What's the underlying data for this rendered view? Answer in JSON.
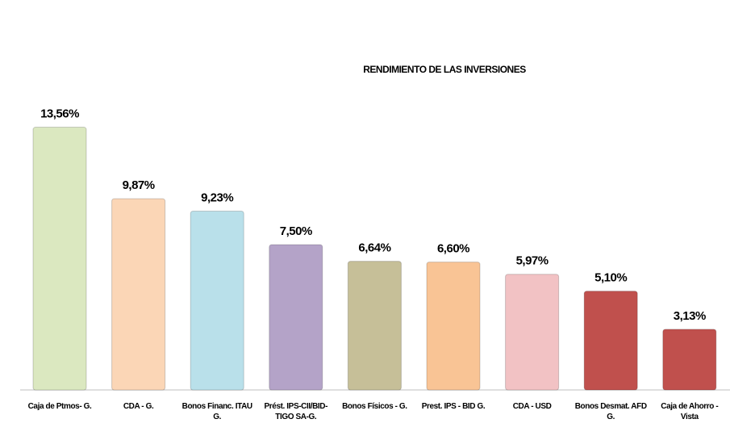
{
  "chart_data": {
    "type": "bar",
    "title": "RENDIMIENTO DE LAS INVERSIONES",
    "categories": [
      "Caja de Ptmos- G.",
      "CDA - G.",
      "Bonos Financ. ITAU G.",
      "Prést. IPS-CII/BID-TIGO SA-G.",
      "Bonos Físicos - G.",
      "Prest. IPS - BID G.",
      "CDA - USD",
      "Bonos Desmat. AFD G.",
      "Caja de Ahorro - Vista"
    ],
    "values": [
      13.56,
      9.87,
      9.23,
      7.5,
      6.64,
      6.6,
      5.97,
      5.1,
      3.13
    ],
    "value_labels": [
      "13,56%",
      "9,87%",
      "9,23%",
      "7,50%",
      "6,64%",
      "6,60%",
      "5,97%",
      "5,10%",
      "3,13%"
    ],
    "colors": [
      "#dbe8c0",
      "#fbd6b6",
      "#b9e0ea",
      "#b4a3c8",
      "#c6bf98",
      "#f9c495",
      "#f2c2c4",
      "#c0504d",
      "#c0504d"
    ],
    "ylim": [
      0,
      15
    ]
  }
}
